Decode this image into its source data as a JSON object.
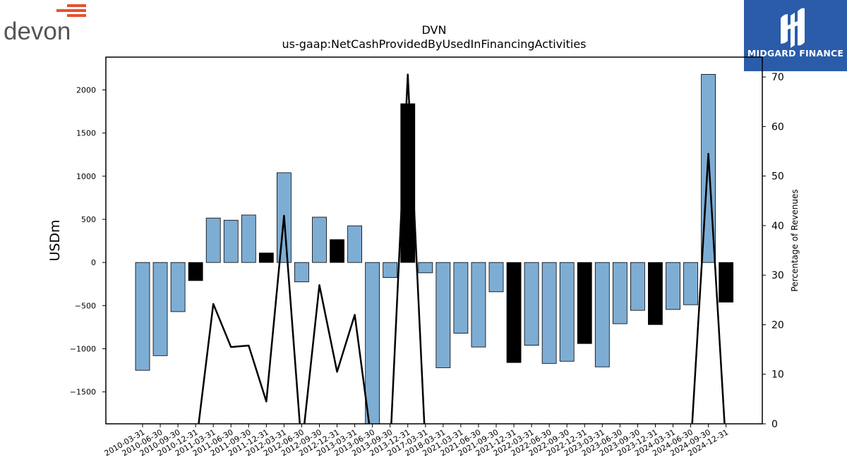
{
  "brand": {
    "company_logo_text": "devon",
    "sponsor_logo_text": "MIDGARD FINANCE"
  },
  "chart_data": {
    "type": "bar",
    "title": "DVN",
    "subtitle": "us-gaap:NetCashProvidedByUsedInFinancingActivities",
    "ylabel": "USDm",
    "y2label": "Percentage of Revenues",
    "ylim": [
      -1870,
      2380
    ],
    "y2lim": [
      0,
      74
    ],
    "yticks": [
      -1500,
      -1000,
      -500,
      0,
      500,
      1000,
      1500,
      2000
    ],
    "y2ticks": [
      0,
      10,
      20,
      30,
      40,
      50,
      60,
      70
    ],
    "colors": {
      "positive": "#7eadd4",
      "negative": "#000000",
      "line": "#000000"
    },
    "categories": [
      "2010-03-31",
      "2010-06-30",
      "2010-09-30",
      "2010-12-31",
      "2011-03-31",
      "2011-06-30",
      "2011-09-30",
      "2011-12-31",
      "2012-03-31",
      "2012-06-30",
      "2012-09-30",
      "2012-12-31",
      "2013-03-31",
      "2013-06-30",
      "2013-09-30",
      "2013-12-31",
      "2017-03-31",
      "2018-03-31",
      "2021-03-31",
      "2021-06-30",
      "2021-09-30",
      "2021-12-31",
      "2022-03-31",
      "2022-06-30",
      "2022-09-30",
      "2022-12-31",
      "2023-03-31",
      "2023-06-30",
      "2023-09-30",
      "2023-12-31",
      "2024-03-31",
      "2024-06-30",
      "2024-09-30",
      "2024-12-31"
    ],
    "series": [
      {
        "type": "bar",
        "values": [
          -1250,
          -1080,
          -570,
          -210,
          515,
          490,
          550,
          110,
          1040,
          -225,
          525,
          265,
          425,
          -1870,
          -175,
          1840,
          -120,
          -1220,
          -820,
          -980,
          -340,
          -1160,
          -960,
          -1170,
          -1145,
          -940,
          -1210,
          -710,
          -555,
          -720,
          -545,
          -490,
          2180,
          -460
        ],
        "highlight": [
          false,
          false,
          false,
          true,
          false,
          false,
          false,
          true,
          false,
          false,
          false,
          true,
          false,
          false,
          false,
          true,
          false,
          false,
          false,
          false,
          false,
          true,
          false,
          false,
          false,
          true,
          false,
          false,
          false,
          true,
          false,
          false,
          false,
          true
        ]
      },
      {
        "type": "line",
        "axis": "right",
        "values": [
          -5,
          -5,
          -5,
          -5,
          24.2,
          15.5,
          15.8,
          4.5,
          42,
          -5,
          28,
          10.5,
          22,
          -5,
          -5,
          70.5,
          -5,
          -5,
          -5,
          -5,
          -5,
          -5,
          -5,
          -5,
          -5,
          -5,
          -5,
          -5,
          -5,
          -5,
          -5,
          -5,
          54.5,
          -5
        ]
      }
    ],
    "grid": false,
    "legend": "none"
  }
}
